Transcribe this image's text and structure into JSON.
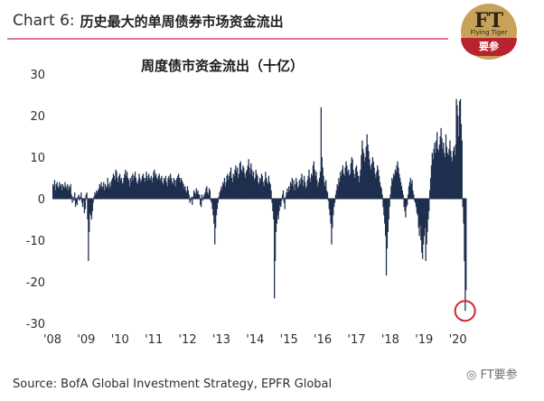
{
  "header": {
    "chart_label": "Chart 6:",
    "title": "历史最大的单周债券市场资金流出"
  },
  "logo": {
    "mark": "FT",
    "sub": "Flying Tiger",
    "cn": "要参"
  },
  "source": "Source: BofA Global Investment Strategy, EPFR Global",
  "watermark": "FT要参",
  "colors": {
    "bar": "#1f2f4e",
    "highlight_circle": "#d0262c",
    "header_rule": "#e07a9a"
  },
  "chart_data": {
    "type": "bar",
    "title": "周度债市资金流出（十亿）",
    "xlabel": "",
    "ylabel": "",
    "ylim": [
      -30,
      30
    ],
    "yticks": [
      30,
      20,
      10,
      0,
      -10,
      -20,
      -30
    ],
    "ytick_labels": [
      "30",
      "20",
      "10",
      "0",
      "-10",
      "-20",
      "-30"
    ],
    "xtick_labels": [
      "'08",
      "'09",
      "'10",
      "'11",
      "'12",
      "'13",
      "'14",
      "'15",
      "'16",
      "'17",
      "'18",
      "'19",
      "'20"
    ],
    "x_start_year": 2008,
    "x_end_year": 2020.25,
    "weekly_values": [
      3.5,
      3.0,
      4.5,
      2.0,
      3.5,
      4.0,
      3.0,
      2.5,
      4.0,
      3.0,
      3.5,
      2.0,
      3.5,
      3.0,
      2.5,
      4.0,
      3.0,
      2.5,
      3.5,
      2.0,
      3.0,
      2.5,
      3.5,
      1.0,
      -1.0,
      0.5,
      -0.5,
      1.5,
      -2.0,
      -1.0,
      -1.5,
      0.5,
      1.0,
      -0.5,
      0.5,
      1.5,
      -1.0,
      -2.0,
      -0.5,
      -3.5,
      -2.5,
      1.0,
      1.5,
      -5.0,
      -15.0,
      -8.0,
      -3.5,
      -4.0,
      -5.0,
      -3.0,
      -1.0,
      0.5,
      1.5,
      1.0,
      2.0,
      1.5,
      2.0,
      2.5,
      3.5,
      3.0,
      4.0,
      2.5,
      3.0,
      4.0,
      2.0,
      3.5,
      2.5,
      3.0,
      5.0,
      3.5,
      2.5,
      4.0,
      3.0,
      4.5,
      5.0,
      6.0,
      5.5,
      4.5,
      7.0,
      6.5,
      5.0,
      4.0,
      5.5,
      6.0,
      4.5,
      5.0,
      3.5,
      4.0,
      5.0,
      6.0,
      7.0,
      5.5,
      6.5,
      5.0,
      4.5,
      3.0,
      5.0,
      4.0,
      5.5,
      6.0,
      4.5,
      5.5,
      6.5,
      5.0,
      4.0,
      3.5,
      4.5,
      6.0,
      5.0,
      4.0,
      4.5,
      5.5,
      6.0,
      5.0,
      4.0,
      5.0,
      6.5,
      5.5,
      4.5,
      6.0,
      5.0,
      4.5,
      5.5,
      4.0,
      5.0,
      6.5,
      7.0,
      5.5,
      6.0,
      5.0,
      4.5,
      5.5,
      6.0,
      4.5,
      5.0,
      5.5,
      4.0,
      3.5,
      5.0,
      4.5,
      5.5,
      4.0,
      3.0,
      5.0,
      5.5,
      4.5,
      6.0,
      5.0,
      4.0,
      3.5,
      5.0,
      4.5,
      3.0,
      4.5,
      5.0,
      5.5,
      6.0,
      5.0,
      4.0,
      5.0,
      4.5,
      4.0,
      3.5,
      2.5,
      3.0,
      2.0,
      1.5,
      3.0,
      2.0,
      1.0,
      -1.0,
      -0.5,
      0.5,
      -1.5,
      0.5,
      2.0,
      1.5,
      1.0,
      2.5,
      1.5,
      2.0,
      1.0,
      1.0,
      -1.5,
      -2.0,
      1.0,
      -0.5,
      0.5,
      1.0,
      1.5,
      2.5,
      3.0,
      1.5,
      1.0,
      2.5,
      2.0,
      -0.5,
      -1.0,
      -2.5,
      -4.0,
      -6.0,
      -11.0,
      -7.0,
      -4.0,
      -2.5,
      -1.0,
      0.5,
      1.5,
      2.0,
      3.0,
      2.5,
      4.0,
      3.5,
      5.0,
      3.0,
      4.0,
      5.5,
      6.0,
      4.5,
      5.5,
      6.5,
      7.5,
      5.0,
      4.0,
      6.0,
      5.5,
      7.0,
      8.0,
      6.5,
      7.5,
      5.0,
      6.0,
      8.5,
      9.0,
      7.0,
      6.5,
      8.0,
      7.5,
      6.0,
      5.0,
      6.5,
      7.0,
      8.0,
      9.5,
      7.5,
      6.0,
      8.5,
      7.0,
      5.5,
      6.5,
      4.5,
      5.0,
      7.0,
      6.0,
      5.5,
      4.0,
      3.5,
      5.0,
      4.5,
      6.0,
      5.5,
      4.0,
      3.0,
      4.5,
      6.5,
      5.0,
      4.0,
      3.5,
      5.5,
      4.0,
      3.5,
      2.0,
      -1.0,
      -3.0,
      -5.0,
      -24.0,
      -15.0,
      -8.0,
      -6.0,
      -4.0,
      -5.0,
      -3.0,
      -1.5,
      -2.0,
      -0.5,
      1.0,
      2.0,
      -1.0,
      -2.5,
      0.5,
      1.5,
      2.5,
      1.5,
      3.0,
      2.0,
      4.0,
      3.5,
      5.0,
      3.0,
      4.5,
      2.0,
      3.5,
      5.0,
      4.0,
      2.5,
      3.0,
      4.5,
      3.5,
      5.0,
      6.0,
      4.5,
      3.0,
      5.5,
      4.0,
      2.5,
      3.0,
      4.5,
      5.5,
      7.0,
      5.0,
      4.0,
      6.0,
      5.5,
      8.0,
      9.0,
      7.0,
      5.5,
      6.5,
      4.5,
      3.0,
      4.0,
      5.0,
      6.5,
      22.0,
      10.0,
      7.5,
      5.5,
      4.0,
      3.0,
      4.5,
      2.0,
      1.5,
      -0.5,
      -2.5,
      -4.0,
      -6.0,
      -11.0,
      -7.0,
      -4.0,
      -2.0,
      -1.0,
      1.0,
      2.0,
      3.5,
      3.0,
      5.0,
      4.0,
      6.5,
      5.5,
      7.0,
      8.0,
      6.0,
      5.5,
      7.5,
      9.0,
      8.0,
      6.5,
      7.0,
      5.5,
      6.0,
      8.5,
      10.0,
      9.5,
      7.0,
      6.0,
      5.0,
      7.5,
      8.0,
      6.5,
      5.5,
      4.0,
      5.5,
      7.0,
      10.5,
      14.0,
      12.0,
      11.0,
      9.0,
      10.0,
      12.5,
      15.5,
      13.0,
      11.5,
      9.5,
      8.0,
      7.0,
      8.5,
      10.0,
      9.0,
      7.5,
      6.0,
      5.0,
      6.5,
      8.0,
      7.0,
      5.5,
      4.0,
      3.0,
      2.5,
      1.0,
      -2.0,
      -4.0,
      -6.0,
      -9.0,
      -18.5,
      -12.0,
      -8.0,
      -5.0,
      -2.0,
      1.0,
      3.0,
      5.0,
      4.5,
      6.0,
      5.5,
      7.0,
      6.5,
      8.0,
      9.0,
      7.5,
      6.0,
      5.0,
      4.0,
      3.0,
      2.0,
      1.0,
      -2.0,
      -3.0,
      -4.5,
      -2.0,
      -1.5,
      1.0,
      3.0,
      4.0,
      5.0,
      3.5,
      4.5,
      2.0,
      1.0,
      -0.5,
      -1.0,
      -2.0,
      -3.5,
      -4.0,
      -7.0,
      -9.0,
      -6.5,
      -10.0,
      -13.0,
      -14.5,
      -11.0,
      -9.0,
      -7.0,
      -15.0,
      -11.0,
      -8.0,
      -5.0,
      -3.0,
      2.0,
      5.0,
      8.0,
      11.0,
      9.5,
      12.0,
      13.5,
      11.0,
      14.0,
      16.0,
      12.0,
      11.5,
      13.0,
      15.0,
      17.0,
      14.5,
      12.0,
      13.5,
      11.0,
      10.0,
      15.5,
      12.5,
      11.0,
      10.5,
      12.0,
      14.0,
      11.5,
      10.0,
      9.0,
      11.5,
      12.5,
      10.5,
      13.0,
      24.0,
      22.5,
      20.0,
      15.0,
      23.5,
      24.0,
      18.0,
      14.0,
      -2.0,
      -6.0,
      -15.0,
      -27.0,
      -22.0
    ],
    "annotation": "circle highlighting the record weekly outflow near -27 at the start of 2020"
  }
}
